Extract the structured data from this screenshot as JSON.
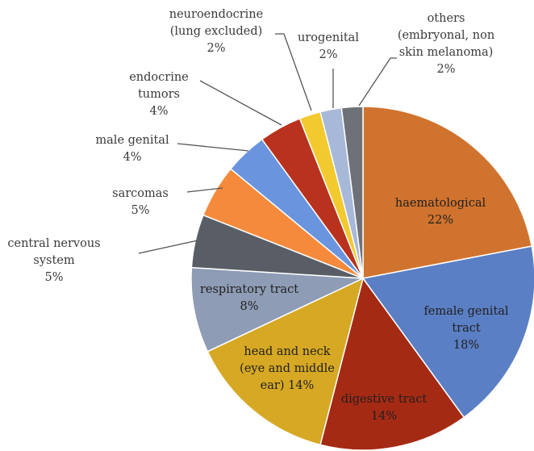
{
  "chart_data": {
    "type": "pie",
    "title": "",
    "slices": [
      {
        "label": [
          "haematological",
          "22%"
        ],
        "value": 22,
        "color": "#D0732E"
      },
      {
        "label": [
          "female genital",
          "tract",
          "18%"
        ],
        "value": 18,
        "color": "#5B7FC4"
      },
      {
        "label": [
          "digestive tract",
          "14%"
        ],
        "value": 14,
        "color": "#A52A14"
      },
      {
        "label": [
          "head and neck",
          "(eye and middle",
          "ear) 14%"
        ],
        "value": 14,
        "color": "#D6A824"
      },
      {
        "label": [
          "respiratory tract",
          "8%"
        ],
        "value": 8,
        "color": "#8E9CB5"
      },
      {
        "label": [
          "central nervous",
          "system",
          "5%"
        ],
        "value": 5,
        "color": "#595E66"
      },
      {
        "label": [
          "sarcomas",
          "5%"
        ],
        "value": 5,
        "color": "#F58A3C"
      },
      {
        "label": [
          "male genital",
          "4%"
        ],
        "value": 4,
        "color": "#6A95DE"
      },
      {
        "label": [
          "endocrine",
          "tumors",
          "4%"
        ],
        "value": 4,
        "color": "#B8321E"
      },
      {
        "label": [
          "neuroendocrine",
          "(lung excluded)",
          "2%"
        ],
        "value": 2,
        "color": "#F2CA30"
      },
      {
        "label": [
          "urogenital",
          "2%"
        ],
        "value": 2,
        "color": "#A8B8D8"
      },
      {
        "label": [
          "others",
          "(embryonal, non",
          "skin melanoma)",
          "2%"
        ],
        "value": 2,
        "color": "#6E7278"
      }
    ],
    "legend": "none"
  }
}
